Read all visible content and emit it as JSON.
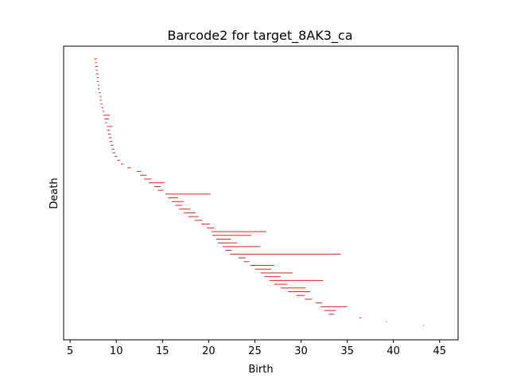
{
  "chart_data": {
    "type": "barcode",
    "title": "Barcode2 for target_8AK3_ca",
    "xlabel": "Birth",
    "ylabel": "Death",
    "xlim": [
      4.3,
      47.0
    ],
    "xticks": [
      5,
      10,
      15,
      20,
      25,
      30,
      35,
      40,
      45
    ],
    "xtick_labels": [
      "5",
      "10",
      "15",
      "20",
      "25",
      "30",
      "35",
      "40",
      "45"
    ],
    "yticks": [],
    "grid": false,
    "bar_color": "#d62728",
    "bars": [
      {
        "birth": 7.6,
        "death": 7.9
      },
      {
        "birth": 7.7,
        "death": 7.9
      },
      {
        "birth": 7.7,
        "death": 8.0
      },
      {
        "birth": 7.8,
        "death": 8.0
      },
      {
        "birth": 7.8,
        "death": 8.1
      },
      {
        "birth": 7.9,
        "death": 8.1
      },
      {
        "birth": 7.9,
        "death": 8.1
      },
      {
        "birth": 8.0,
        "death": 8.2
      },
      {
        "birth": 8.0,
        "death": 8.2
      },
      {
        "birth": 8.1,
        "death": 8.3
      },
      {
        "birth": 8.2,
        "death": 8.4
      },
      {
        "birth": 8.2,
        "death": 8.4
      },
      {
        "birth": 8.3,
        "death": 8.5
      },
      {
        "birth": 8.4,
        "death": 8.6
      },
      {
        "birth": 8.5,
        "death": 8.7
      },
      {
        "birth": 8.6,
        "death": 9.3
      },
      {
        "birth": 8.7,
        "death": 9.2
      },
      {
        "birth": 8.8,
        "death": 9.0
      },
      {
        "birth": 9.0,
        "death": 9.6
      },
      {
        "birth": 9.0,
        "death": 9.3
      },
      {
        "birth": 9.1,
        "death": 9.4
      },
      {
        "birth": 9.2,
        "death": 9.5
      },
      {
        "birth": 9.3,
        "death": 9.6
      },
      {
        "birth": 9.4,
        "death": 9.7
      },
      {
        "birth": 9.5,
        "death": 9.8
      },
      {
        "birth": 9.6,
        "death": 9.9
      },
      {
        "birth": 9.8,
        "death": 10.1
      },
      {
        "birth": 10.1,
        "death": 10.4
      },
      {
        "birth": 10.5,
        "death": 10.8
      },
      {
        "birth": 11.2,
        "death": 11.6
      },
      {
        "birth": 12.2,
        "death": 12.7
      },
      {
        "birth": 12.6,
        "death": 13.3
      },
      {
        "birth": 13.0,
        "death": 13.8
      },
      {
        "birth": 13.5,
        "death": 15.2
      },
      {
        "birth": 14.1,
        "death": 14.8
      },
      {
        "birth": 14.5,
        "death": 15.1
      },
      {
        "birth": 15.3,
        "death": 20.2
      },
      {
        "birth": 15.6,
        "death": 16.7
      },
      {
        "birth": 16.0,
        "death": 17.3
      },
      {
        "birth": 16.4,
        "death": 17.1
      },
      {
        "birth": 16.8,
        "death": 18.0
      },
      {
        "birth": 17.3,
        "death": 18.6
      },
      {
        "birth": 17.8,
        "death": 18.9
      },
      {
        "birth": 18.5,
        "death": 19.3
      },
      {
        "birth": 19.2,
        "death": 20.1
      },
      {
        "birth": 19.8,
        "death": 20.6
      },
      {
        "birth": 20.3,
        "death": 26.2
      },
      {
        "birth": 20.4,
        "death": 24.6
      },
      {
        "birth": 20.8,
        "death": 22.4
      },
      {
        "birth": 21.0,
        "death": 23.1
      },
      {
        "birth": 21.5,
        "death": 25.6
      },
      {
        "birth": 21.8,
        "death": 22.5
      },
      {
        "birth": 22.3,
        "death": 34.3
      },
      {
        "birth": 23.2,
        "death": 24.0
      },
      {
        "birth": 23.8,
        "death": 24.4
      },
      {
        "birth": 24.5,
        "death": 27.1
      },
      {
        "birth": 25.0,
        "death": 26.8
      },
      {
        "birth": 25.6,
        "death": 29.1
      },
      {
        "birth": 26.0,
        "death": 27.8
      },
      {
        "birth": 26.6,
        "death": 32.4
      },
      {
        "birth": 27.1,
        "death": 28.5
      },
      {
        "birth": 27.8,
        "death": 30.5
      },
      {
        "birth": 28.6,
        "death": 31.0
      },
      {
        "birth": 29.5,
        "death": 30.4
      },
      {
        "birth": 30.4,
        "death": 31.2
      },
      {
        "birth": 31.6,
        "death": 32.3
      },
      {
        "birth": 32.1,
        "death": 35.0
      },
      {
        "birth": 32.5,
        "death": 33.8
      },
      {
        "birth": 33.0,
        "death": 33.6
      },
      {
        "birth": 36.3,
        "death": 36.5
      },
      {
        "birth": 39.2,
        "death": 39.3
      },
      {
        "birth": 43.2,
        "death": 43.3
      }
    ]
  }
}
